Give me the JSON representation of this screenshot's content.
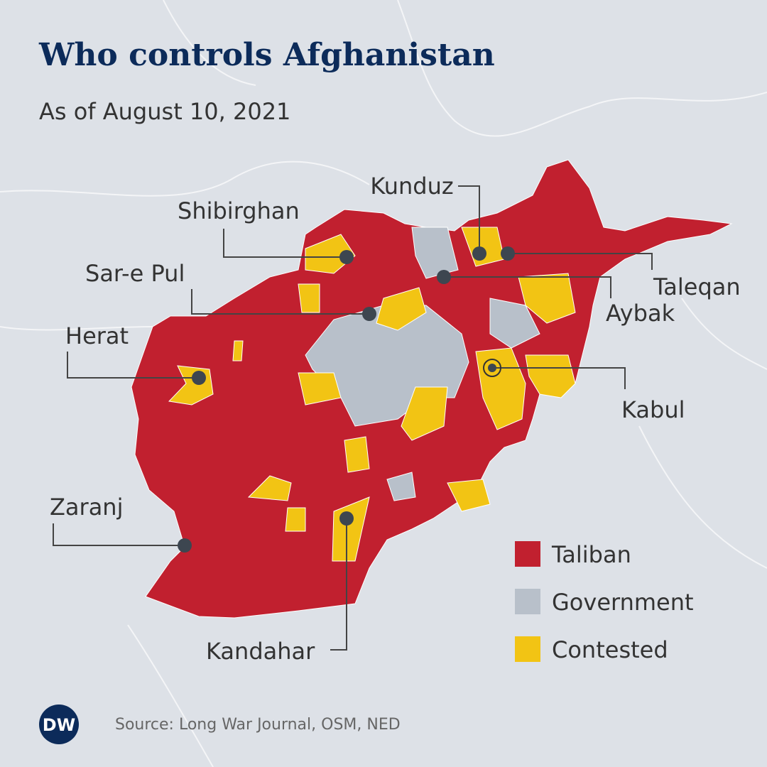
{
  "header": {
    "title": "Who controls Afghanistan",
    "subtitle": "As of August 10, 2021"
  },
  "cities": [
    {
      "label": "Kunduz"
    },
    {
      "label": "Taleqan"
    },
    {
      "label": "Aybak"
    },
    {
      "label": "Shibirghan"
    },
    {
      "label": "Sar-e Pul"
    },
    {
      "label": "Herat"
    },
    {
      "label": "Kabul"
    },
    {
      "label": "Zaranj"
    },
    {
      "label": "Kandahar"
    }
  ],
  "legend": [
    {
      "label": "Taliban",
      "color": "#c1202f"
    },
    {
      "label": "Government",
      "color": "#b8c0ca"
    },
    {
      "label": "Contested",
      "color": "#f2c414"
    }
  ],
  "footer": {
    "logo": "DW",
    "source": "Source: Long War Journal, OSM, NED"
  }
}
